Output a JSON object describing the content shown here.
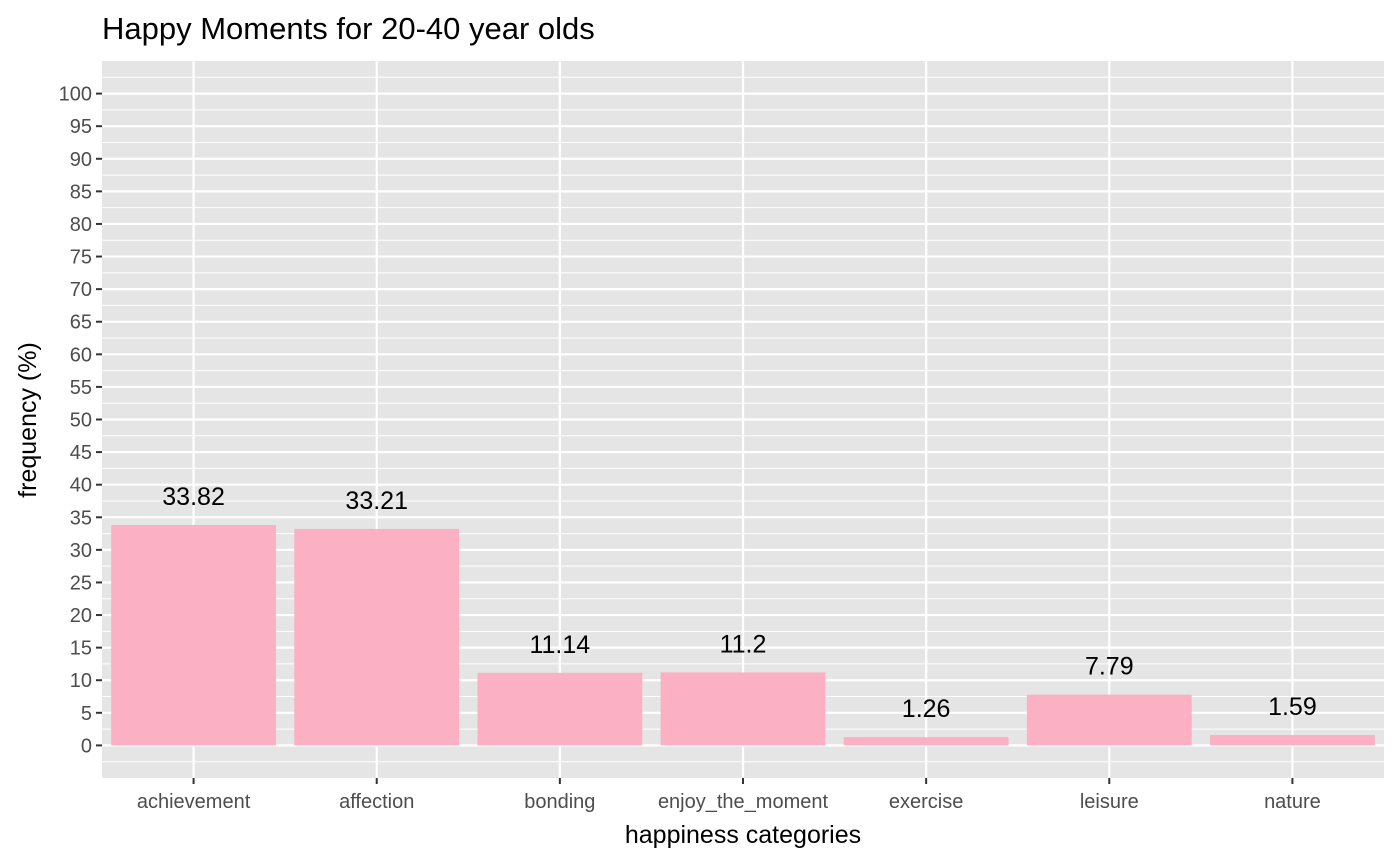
{
  "chart_data": {
    "type": "bar",
    "title": "Happy Moments for 20-40 year olds",
    "xlabel": "happiness categories",
    "ylabel": "frequency (%)",
    "categories": [
      "achievement",
      "affection",
      "bonding",
      "enjoy_the_moment",
      "exercise",
      "leisure",
      "nature"
    ],
    "values": [
      33.82,
      33.21,
      11.14,
      11.2,
      1.26,
      7.79,
      1.59
    ],
    "data_labels": [
      "33.82",
      "33.21",
      "11.14",
      "11.2",
      "1.26",
      "7.79",
      "1.59"
    ],
    "y_ticks": [
      0,
      5,
      10,
      15,
      20,
      25,
      30,
      35,
      40,
      45,
      50,
      55,
      60,
      65,
      70,
      75,
      80,
      85,
      90,
      95,
      100
    ],
    "ylim": [
      -5,
      105
    ],
    "grid": true,
    "legend": "none",
    "colors": {
      "bar": "#fbb1c3",
      "panel": "#e5e5e5",
      "grid": "#ffffff",
      "tick": "#333333",
      "tick_label": "#4d4d4d"
    }
  }
}
